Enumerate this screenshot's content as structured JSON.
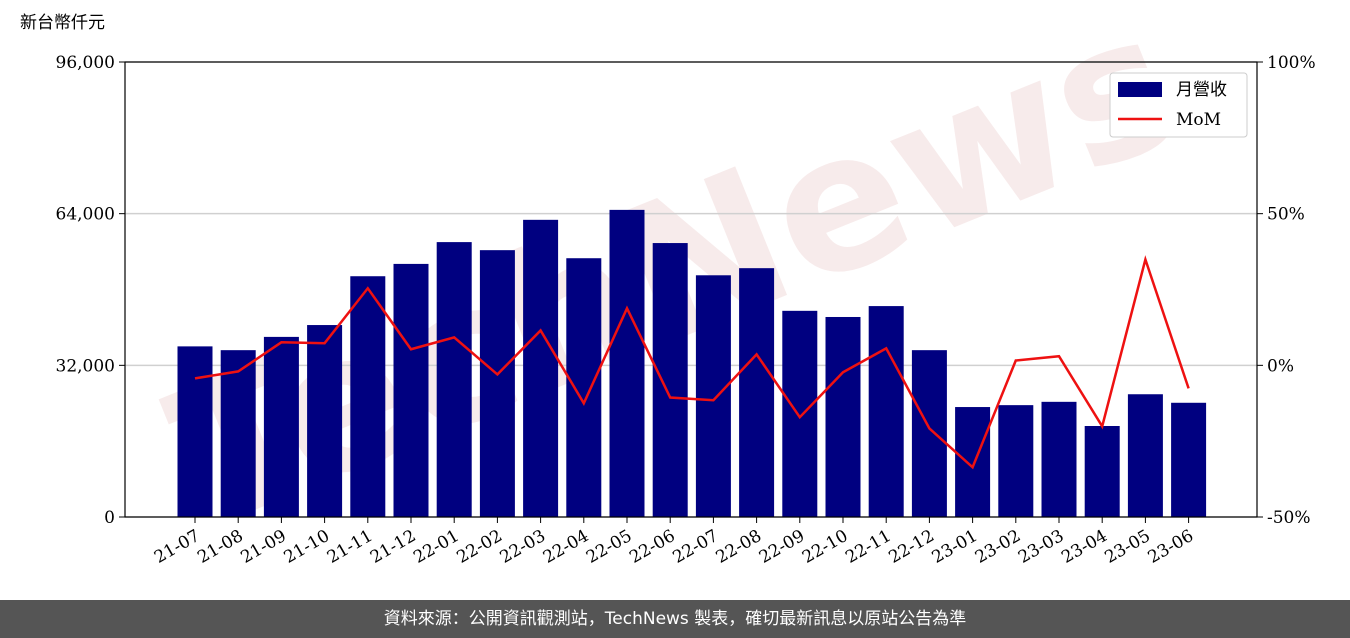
{
  "chart_data": {
    "type": "bar-line",
    "y_label": "新台幣仟元",
    "watermark": "TechNews",
    "categories": [
      "21-07",
      "21-08",
      "21-09",
      "21-10",
      "21-11",
      "21-12",
      "22-01",
      "22-02",
      "22-03",
      "22-04",
      "22-05",
      "22-06",
      "22-07",
      "22-08",
      "22-09",
      "22-10",
      "22-11",
      "22-12",
      "23-01",
      "23-02",
      "23-03",
      "23-04",
      "23-05",
      "23-06"
    ],
    "series": [
      {
        "name": "月營收",
        "color": "#000080",
        "type": "bar",
        "values": [
          36000,
          35200,
          38000,
          40500,
          50800,
          53400,
          58000,
          56300,
          62700,
          54600,
          64800,
          57800,
          51000,
          52500,
          43500,
          42200,
          44500,
          35200,
          23200,
          23600,
          24300,
          19200,
          25900,
          24100
        ]
      },
      {
        "name": "MoM",
        "color": "#ee1111",
        "type": "line",
        "axis": "y2",
        "values": [
          -4.3,
          -2.0,
          7.6,
          7.3,
          25.4,
          5.3,
          9.2,
          -3.0,
          11.5,
          -12.5,
          18.8,
          -10.6,
          -11.5,
          3.6,
          -17.1,
          -2.3,
          5.6,
          -20.8,
          -33.6,
          1.6,
          3.0,
          -20.1,
          34.9,
          -7.6
        ]
      }
    ],
    "ylim": [
      0,
      96000
    ],
    "yticks": [
      0,
      {
        "value": 32000,
        "label": "32,000"
      },
      {
        "value": 64000,
        "label": "64,000"
      },
      {
        "value": 96000,
        "label": "96,000"
      }
    ],
    "y2lim": [
      -50,
      100
    ],
    "y2ticks": [
      {
        "value": -50,
        "label": "-50%"
      },
      {
        "value": 0,
        "label": "0%"
      },
      {
        "value": 50,
        "label": "50%"
      },
      {
        "value": 100,
        "label": "100%"
      }
    ],
    "grid": true,
    "legend": "upper right",
    "footer": "資料來源：公開資訊觀測站，TechNews 製表，確切最新訊息以原站公告為準"
  }
}
